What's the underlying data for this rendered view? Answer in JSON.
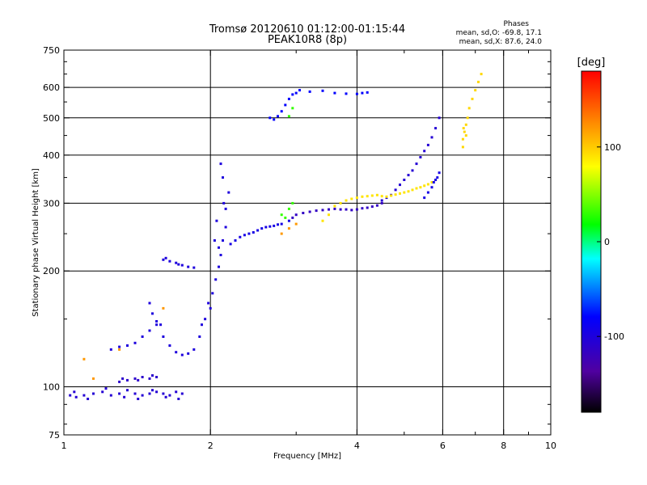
{
  "chart_data": {
    "type": "scatter",
    "title": "Tromsø 20120610 01:12:00-01:15:44",
    "subtitle": "PEAK10R8 (8p)",
    "xlabel": "Frequency [MHz]",
    "ylabel": "Stationary phase Virtual Height [km]",
    "x_scale": "log",
    "y_scale": "log",
    "xlim": [
      1,
      10
    ],
    "ylim": [
      75,
      750
    ],
    "x_ticks": [
      1,
      2,
      4,
      6,
      8,
      10
    ],
    "x_tick_labels": [
      "1",
      "2",
      "4",
      "6",
      "8",
      "10"
    ],
    "y_ticks": [
      75,
      100,
      200,
      300,
      400,
      500,
      600,
      750
    ],
    "y_tick_labels": [
      "75",
      "100",
      "200",
      "300",
      "400",
      "500",
      "600",
      "750"
    ],
    "grid_x": [
      2,
      4,
      6,
      8
    ],
    "grid_y": [
      100,
      200,
      300,
      400,
      500,
      600
    ],
    "stats": {
      "heading": "Phases",
      "line_o": "mean, sd,O:  -69.8,  17.1",
      "line_x": "mean, sd,X:   87.6,  24.0"
    },
    "colorbar": {
      "label": "[deg]",
      "min": -180,
      "max": 180,
      "ticks": [
        100,
        0,
        -100
      ],
      "tick_labels": [
        "100",
        "0",
        "-100"
      ]
    },
    "series": [
      {
        "phase": -105,
        "points": [
          [
            1.03,
            95
          ],
          [
            1.06,
            94
          ],
          [
            1.1,
            95
          ],
          [
            1.15,
            96
          ],
          [
            1.2,
            97
          ],
          [
            1.25,
            95
          ],
          [
            1.3,
            96
          ],
          [
            1.35,
            98
          ],
          [
            1.4,
            96
          ],
          [
            1.45,
            95
          ],
          [
            1.5,
            96
          ],
          [
            1.55,
            97
          ],
          [
            1.6,
            96
          ],
          [
            1.65,
            95
          ],
          [
            1.7,
            97
          ],
          [
            1.75,
            96
          ],
          [
            1.05,
            97
          ],
          [
            1.12,
            93
          ],
          [
            1.22,
            99
          ],
          [
            1.33,
            94
          ],
          [
            1.42,
            93
          ],
          [
            1.52,
            98
          ],
          [
            1.62,
            94
          ],
          [
            1.72,
            93
          ]
        ]
      },
      {
        "phase": -110,
        "points": [
          [
            1.3,
            103
          ],
          [
            1.35,
            104
          ],
          [
            1.4,
            105
          ],
          [
            1.45,
            106
          ],
          [
            1.5,
            105
          ],
          [
            1.55,
            106
          ],
          [
            1.32,
            105
          ],
          [
            1.42,
            104
          ],
          [
            1.52,
            107
          ]
        ]
      },
      {
        "phase": -100,
        "points": [
          [
            1.25,
            125
          ],
          [
            1.3,
            127
          ],
          [
            1.35,
            128
          ],
          [
            1.4,
            130
          ],
          [
            1.45,
            135
          ],
          [
            1.5,
            140
          ],
          [
            1.55,
            145
          ],
          [
            1.6,
            135
          ],
          [
            1.65,
            128
          ],
          [
            1.7,
            123
          ],
          [
            1.75,
            121
          ],
          [
            1.8,
            122
          ],
          [
            1.85,
            125
          ],
          [
            1.9,
            135
          ],
          [
            1.95,
            150
          ],
          [
            2.0,
            160
          ],
          [
            2.02,
            175
          ],
          [
            2.05,
            190
          ],
          [
            2.08,
            205
          ],
          [
            2.1,
            220
          ],
          [
            2.12,
            240
          ],
          [
            2.15,
            260
          ],
          [
            2.15,
            290
          ],
          [
            2.18,
            320
          ],
          [
            2.12,
            350
          ],
          [
            2.1,
            380
          ],
          [
            2.13,
            300
          ],
          [
            2.06,
            270
          ],
          [
            2.04,
            240
          ],
          [
            2.08,
            230
          ],
          [
            1.98,
            165
          ],
          [
            1.92,
            145
          ]
        ]
      },
      {
        "phase": -100,
        "points": [
          [
            1.5,
            165
          ],
          [
            1.52,
            155
          ],
          [
            1.55,
            148
          ],
          [
            1.58,
            145
          ],
          [
            1.6,
            214
          ],
          [
            1.65,
            212
          ],
          [
            1.7,
            210
          ],
          [
            1.75,
            207
          ],
          [
            1.8,
            205
          ],
          [
            1.85,
            204
          ],
          [
            1.62,
            216
          ],
          [
            1.72,
            208
          ]
        ]
      },
      {
        "phase": -95,
        "points": [
          [
            2.2,
            235
          ],
          [
            2.3,
            245
          ],
          [
            2.4,
            250
          ],
          [
            2.5,
            255
          ],
          [
            2.6,
            260
          ],
          [
            2.7,
            262
          ],
          [
            2.8,
            265
          ],
          [
            2.9,
            270
          ],
          [
            2.25,
            240
          ],
          [
            2.35,
            248
          ],
          [
            2.45,
            252
          ],
          [
            2.55,
            258
          ],
          [
            2.65,
            261
          ],
          [
            2.75,
            264
          ]
        ]
      },
      {
        "phase": -115,
        "points": [
          [
            2.95,
            275
          ],
          [
            3.0,
            280
          ],
          [
            3.1,
            283
          ],
          [
            3.2,
            285
          ],
          [
            3.3,
            287
          ],
          [
            3.4,
            288
          ],
          [
            3.5,
            289
          ],
          [
            3.6,
            290
          ],
          [
            3.7,
            289
          ],
          [
            3.8,
            289
          ],
          [
            3.9,
            288
          ],
          [
            4.0,
            289
          ],
          [
            4.1,
            291
          ],
          [
            4.2,
            292
          ],
          [
            4.3,
            294
          ],
          [
            4.4,
            296
          ],
          [
            4.5,
            300
          ]
        ]
      },
      {
        "phase": -105,
        "points": [
          [
            4.5,
            305
          ],
          [
            4.6,
            310
          ],
          [
            4.7,
            315
          ],
          [
            4.8,
            325
          ],
          [
            4.9,
            335
          ],
          [
            5.0,
            345
          ],
          [
            5.1,
            355
          ],
          [
            5.2,
            365
          ],
          [
            5.3,
            380
          ],
          [
            5.4,
            395
          ],
          [
            5.5,
            410
          ],
          [
            5.6,
            425
          ],
          [
            5.7,
            445
          ],
          [
            5.8,
            470
          ],
          [
            5.9,
            500
          ]
        ]
      },
      {
        "phase": 90,
        "points": [
          [
            3.4,
            270
          ],
          [
            3.5,
            280
          ],
          [
            3.6,
            295
          ],
          [
            3.7,
            300
          ],
          [
            3.8,
            305
          ],
          [
            3.9,
            308
          ],
          [
            4.0,
            310
          ],
          [
            4.1,
            312
          ],
          [
            4.2,
            313
          ],
          [
            4.3,
            314
          ],
          [
            4.4,
            315
          ],
          [
            4.5,
            313
          ],
          [
            4.6,
            312
          ],
          [
            4.7,
            314
          ],
          [
            4.8,
            316
          ],
          [
            4.9,
            318
          ],
          [
            5.0,
            320
          ],
          [
            5.1,
            322
          ],
          [
            5.2,
            325
          ],
          [
            5.3,
            328
          ],
          [
            5.4,
            330
          ],
          [
            5.5,
            333
          ],
          [
            5.6,
            336
          ],
          [
            5.7,
            340
          ],
          [
            5.8,
            345
          ]
        ]
      },
      {
        "phase": 95,
        "points": [
          [
            6.6,
            440
          ],
          [
            6.65,
            460
          ],
          [
            6.7,
            480
          ],
          [
            6.75,
            500
          ],
          [
            6.8,
            530
          ],
          [
            6.9,
            560
          ],
          [
            7.0,
            590
          ],
          [
            7.1,
            620
          ],
          [
            7.2,
            650
          ],
          [
            6.6,
            420
          ],
          [
            6.7,
            450
          ],
          [
            6.62,
            470
          ]
        ]
      },
      {
        "phase": -80,
        "points": [
          [
            2.65,
            500
          ],
          [
            2.7,
            495
          ],
          [
            2.75,
            505
          ],
          [
            2.8,
            520
          ],
          [
            2.85,
            540
          ],
          [
            2.9,
            560
          ],
          [
            2.95,
            575
          ],
          [
            3.0,
            580
          ],
          [
            3.05,
            590
          ],
          [
            3.2,
            585
          ],
          [
            3.4,
            588
          ],
          [
            3.6,
            580
          ],
          [
            3.8,
            578
          ],
          [
            4.0,
            577
          ],
          [
            4.1,
            580
          ],
          [
            4.2,
            582
          ]
        ]
      },
      {
        "phase": -95,
        "points": [
          [
            5.5,
            310
          ],
          [
            5.6,
            320
          ],
          [
            5.7,
            330
          ],
          [
            5.75,
            340
          ],
          [
            5.8,
            345
          ],
          [
            5.85,
            350
          ],
          [
            5.9,
            360
          ]
        ]
      },
      {
        "phase": 30,
        "points": [
          [
            2.8,
            280
          ],
          [
            2.9,
            290
          ],
          [
            2.95,
            300
          ],
          [
            2.85,
            275
          ],
          [
            2.9,
            505
          ],
          [
            2.95,
            530
          ]
        ]
      },
      {
        "phase": 120,
        "points": [
          [
            2.8,
            250
          ],
          [
            2.9,
            258
          ],
          [
            3.0,
            265
          ],
          [
            1.15,
            105
          ],
          [
            1.3,
            125
          ],
          [
            1.6,
            160
          ],
          [
            1.1,
            118
          ]
        ]
      }
    ]
  }
}
